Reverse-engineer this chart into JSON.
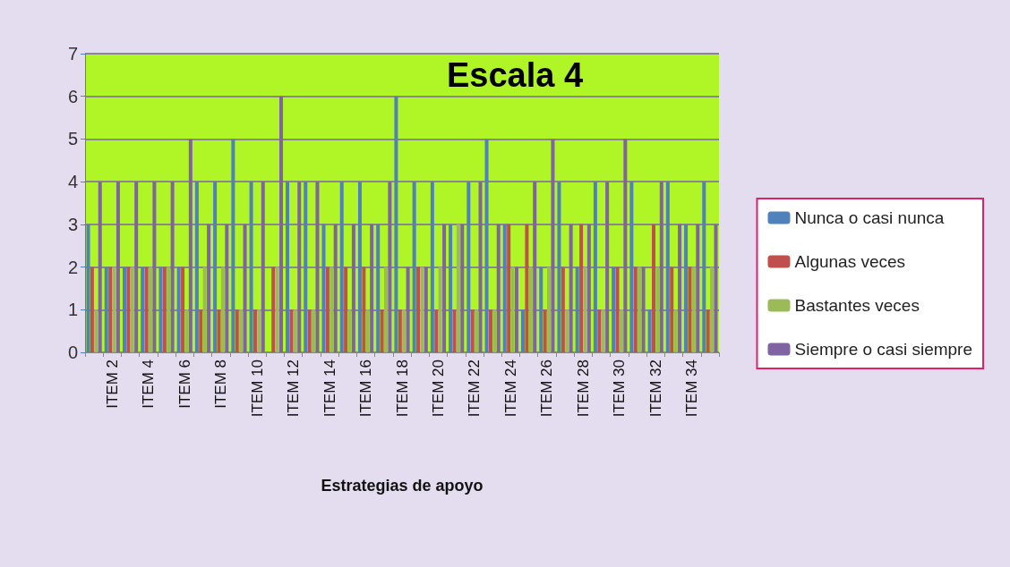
{
  "chart_data": {
    "type": "bar",
    "title": "Escala 4",
    "xlabel": "Estrategias de apoyo",
    "categories": [
      null,
      "ITEM 2",
      null,
      "ITEM 4",
      null,
      "ITEM 6",
      null,
      "ITEM 8",
      null,
      "ITEM 10",
      null,
      "ITEM 12",
      null,
      "ITEM 14",
      null,
      "ITEM 16",
      null,
      "ITEM 18",
      null,
      "ITEM 20",
      null,
      "ITEM 22",
      null,
      "ITEM 24",
      null,
      "ITEM 26",
      null,
      "ITEM 28",
      null,
      "ITEM 30",
      null,
      "ITEM 32",
      null,
      "ITEM 34",
      null
    ],
    "series": [
      {
        "name": "Nunca o casi nunca",
        "color": "#4f81bd",
        "values": [
          3,
          2,
          2,
          2,
          2,
          2,
          4,
          4,
          5,
          4,
          0,
          4,
          4,
          3,
          4,
          4,
          3,
          6,
          4,
          4,
          3,
          4,
          5,
          3,
          1,
          2,
          4,
          2,
          4,
          2,
          4,
          1,
          4,
          3,
          4
        ]
      },
      {
        "name": "Algunas veces",
        "color": "#c0504d",
        "values": [
          2,
          2,
          2,
          2,
          2,
          2,
          1,
          1,
          1,
          1,
          2,
          1,
          1,
          2,
          2,
          2,
          1,
          1,
          2,
          1,
          1,
          1,
          1,
          3,
          3,
          1,
          2,
          3,
          1,
          2,
          2,
          3,
          2,
          2,
          1
        ]
      },
      {
        "name": "Bastantes veces",
        "color": "#9bbb59",
        "values": [
          1,
          2,
          2,
          2,
          2,
          1,
          2,
          2,
          1,
          1,
          2,
          1,
          1,
          2,
          1,
          1,
          2,
          1,
          2,
          2,
          3,
          1,
          1,
          2,
          2,
          2,
          1,
          2,
          1,
          1,
          2,
          2,
          1,
          2,
          2
        ]
      },
      {
        "name": "Siempre o casi siempre",
        "color": "#8064a2",
        "values": [
          4,
          4,
          4,
          4,
          4,
          5,
          3,
          3,
          3,
          4,
          6,
          4,
          4,
          3,
          3,
          3,
          4,
          2,
          2,
          3,
          3,
          4,
          3,
          2,
          4,
          5,
          3,
          3,
          4,
          5,
          2,
          4,
          3,
          3,
          3
        ]
      }
    ],
    "ylim": [
      0,
      7
    ],
    "yticks": [
      0,
      1,
      2,
      3,
      4,
      5,
      6,
      7
    ],
    "grid": "y",
    "legend": "right"
  }
}
